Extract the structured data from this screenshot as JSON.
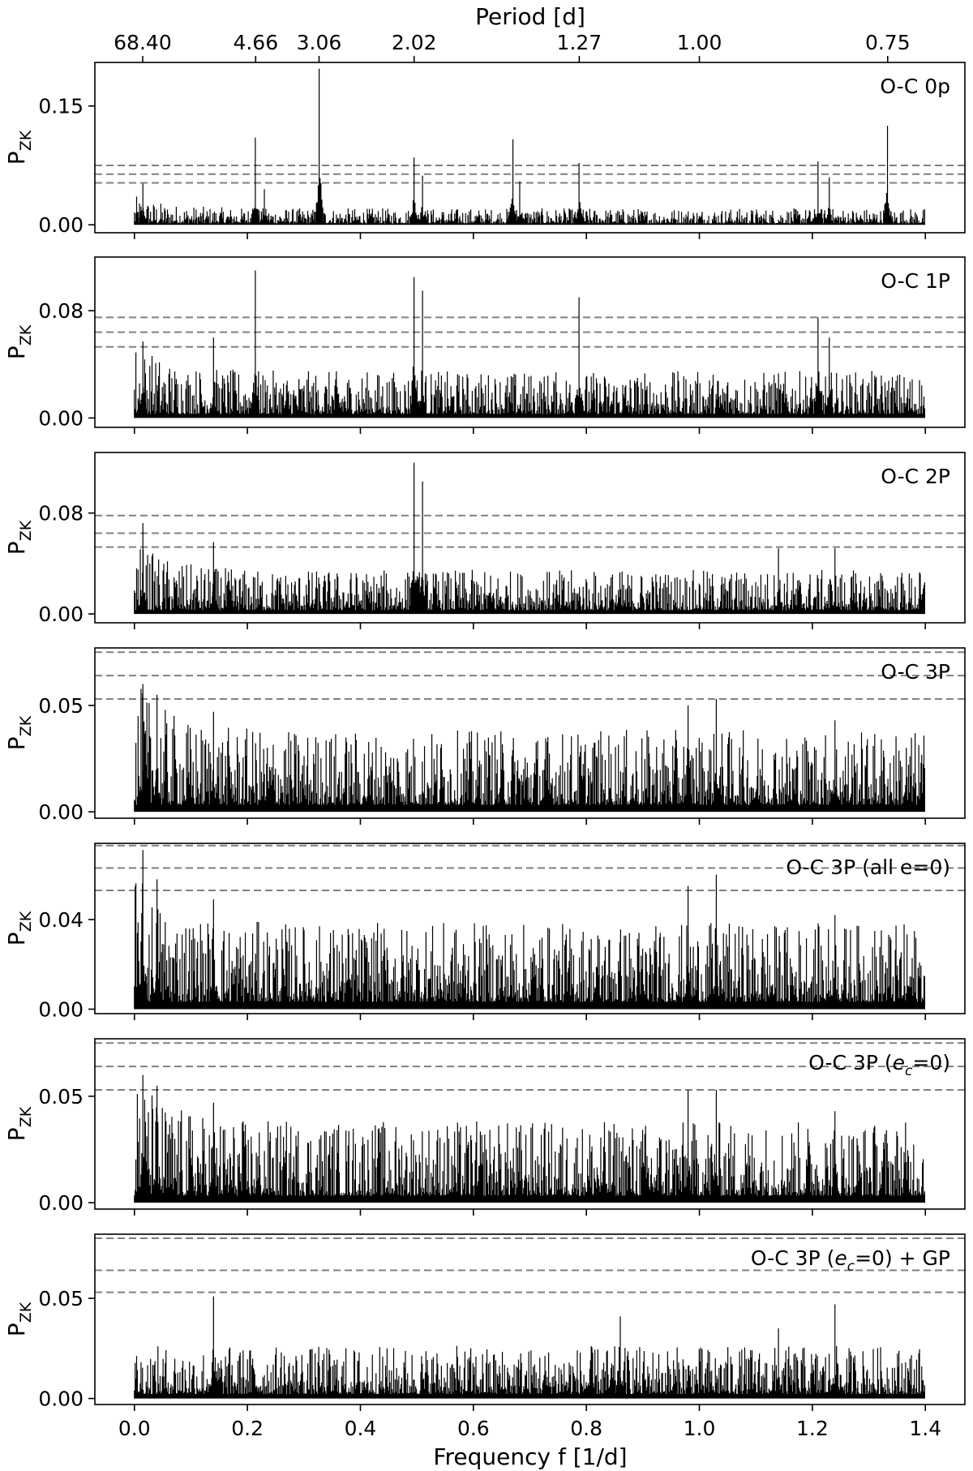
{
  "chart_data": {
    "type": "line",
    "top_axis": {
      "label": "Period [d]",
      "ticks": [
        {
          "label": "68.40",
          "freq": 0.01462
        },
        {
          "label": "4.66",
          "freq": 0.21459
        },
        {
          "label": "3.06",
          "freq": 0.3268
        },
        {
          "label": "2.02",
          "freq": 0.49505
        },
        {
          "label": "1.27",
          "freq": 0.7874
        },
        {
          "label": "1.00",
          "freq": 1.0
        },
        {
          "label": "0.75",
          "freq": 1.33333
        }
      ]
    },
    "x_axis": {
      "label": "Frequency f [1/d]",
      "xlim": [
        -0.07,
        1.47
      ],
      "ticks": [
        0.0,
        0.2,
        0.4,
        0.6,
        0.8,
        1.0,
        1.2,
        1.4
      ],
      "tick_labels": [
        "0.0",
        "0.2",
        "0.4",
        "0.6",
        "0.8",
        "1.0",
        "1.2",
        "1.4"
      ]
    },
    "y_label": "P_ZK",
    "line_color": "#000000",
    "threshold_color": "#808080",
    "panels": [
      {
        "label": "O-C 0p",
        "ylim": [
          -0.01,
          0.205
        ],
        "yticks": [
          0.0,
          0.15
        ],
        "ytick_labels": [
          "0.00",
          "0.15"
        ],
        "thresholds": [
          0.053,
          0.064,
          0.075
        ],
        "noise": 0.012,
        "low_boost": 0.02,
        "peaks": [
          [
            0.015,
            0.052
          ],
          [
            0.214,
            0.11
          ],
          [
            0.23,
            0.045
          ],
          [
            0.327,
            0.197
          ],
          [
            0.495,
            0.085
          ],
          [
            0.51,
            0.062
          ],
          [
            0.67,
            0.108
          ],
          [
            0.682,
            0.055
          ],
          [
            0.787,
            0.078
          ],
          [
            1.21,
            0.08
          ],
          [
            1.23,
            0.06
          ],
          [
            1.333,
            0.125
          ]
        ]
      },
      {
        "label": "O-C 1P",
        "ylim": [
          -0.007,
          0.12
        ],
        "yticks": [
          0.0,
          0.08
        ],
        "ytick_labels": [
          "0.00",
          "0.08"
        ],
        "thresholds": [
          0.053,
          0.064,
          0.075
        ],
        "noise": 0.02,
        "low_boost": 0.03,
        "peaks": [
          [
            0.015,
            0.057
          ],
          [
            0.14,
            0.06
          ],
          [
            0.214,
            0.11
          ],
          [
            0.495,
            0.105
          ],
          [
            0.51,
            0.095
          ],
          [
            0.787,
            0.09
          ],
          [
            1.21,
            0.075
          ],
          [
            1.23,
            0.06
          ]
        ]
      },
      {
        "label": "O-C 2P",
        "ylim": [
          -0.007,
          0.128
        ],
        "yticks": [
          0.0,
          0.08
        ],
        "ytick_labels": [
          "0.00",
          "0.08"
        ],
        "thresholds": [
          0.053,
          0.064,
          0.078
        ],
        "noise": 0.02,
        "low_boost": 0.03,
        "peaks": [
          [
            0.015,
            0.072
          ],
          [
            0.14,
            0.057
          ],
          [
            0.495,
            0.12
          ],
          [
            0.51,
            0.105
          ],
          [
            1.14,
            0.052
          ],
          [
            1.24,
            0.052
          ]
        ]
      },
      {
        "label": "O-C 3P",
        "ylim": [
          -0.003,
          0.077
        ],
        "yticks": [
          0.0,
          0.05
        ],
        "ytick_labels": [
          "0.00",
          "0.05"
        ],
        "thresholds": [
          0.053,
          0.064,
          0.075
        ],
        "noise": 0.022,
        "low_boost": 0.03,
        "peaks": [
          [
            0.015,
            0.06
          ],
          [
            0.04,
            0.055
          ],
          [
            0.14,
            0.047
          ],
          [
            0.98,
            0.05
          ],
          [
            1.03,
            0.053
          ],
          [
            1.24,
            0.043
          ]
        ]
      },
      {
        "label": "O-C 3P (all e=0)",
        "ylim": [
          -0.002,
          0.074
        ],
        "yticks": [
          0.0,
          0.04
        ],
        "ytick_labels": [
          "0.00",
          "0.04"
        ],
        "thresholds": [
          0.053,
          0.063,
          0.073
        ],
        "noise": 0.022,
        "low_boost": 0.03,
        "peaks": [
          [
            0.015,
            0.071
          ],
          [
            0.04,
            0.058
          ],
          [
            0.14,
            0.049
          ],
          [
            0.98,
            0.055
          ],
          [
            1.03,
            0.06
          ],
          [
            1.24,
            0.042
          ]
        ]
      },
      {
        "label": "O-C 3P (ec=0)",
        "ylim": [
          -0.003,
          0.077
        ],
        "yticks": [
          0.0,
          0.05
        ],
        "ytick_labels": [
          "0.00",
          "0.05"
        ],
        "thresholds": [
          0.053,
          0.064,
          0.075
        ],
        "noise": 0.022,
        "low_boost": 0.03,
        "peaks": [
          [
            0.015,
            0.06
          ],
          [
            0.04,
            0.055
          ],
          [
            0.14,
            0.047
          ],
          [
            0.98,
            0.053
          ],
          [
            1.03,
            0.053
          ],
          [
            1.24,
            0.043
          ]
        ]
      },
      {
        "label": "O-C 3P (ec=0) + GP",
        "ylim": [
          -0.003,
          0.082
        ],
        "yticks": [
          0.0,
          0.05
        ],
        "ytick_labels": [
          "0.00",
          "0.05"
        ],
        "thresholds": [
          0.053,
          0.064,
          0.08
        ],
        "noise": 0.015,
        "low_boost": 0.0,
        "peaks": [
          [
            0.14,
            0.051
          ],
          [
            0.86,
            0.041
          ],
          [
            1.14,
            0.035
          ],
          [
            1.24,
            0.047
          ]
        ]
      }
    ]
  }
}
